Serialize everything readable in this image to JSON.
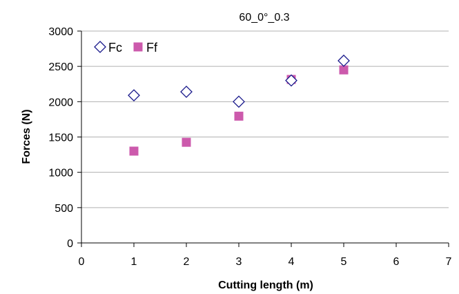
{
  "chart_data": {
    "type": "scatter",
    "title": "60_0°_0.3",
    "xlabel": "Cutting length (m)",
    "ylabel": "Forces (N)",
    "xlim": [
      0,
      7
    ],
    "ylim": [
      0,
      3000
    ],
    "xticks": [
      0,
      1,
      2,
      3,
      4,
      5,
      6,
      7
    ],
    "yticks": [
      0,
      500,
      1000,
      1500,
      2000,
      2500,
      3000
    ],
    "grid": "horizontal",
    "legend": "top-left",
    "series": [
      {
        "name": "Fc",
        "marker": "diamond-open",
        "color": "#1a1a8c",
        "x": [
          1,
          2,
          3,
          4,
          5
        ],
        "y": [
          2090,
          2140,
          2000,
          2300,
          2580
        ]
      },
      {
        "name": "Ff",
        "marker": "square",
        "color": "#cc5aac",
        "x": [
          1,
          2,
          3,
          4,
          5
        ],
        "y": [
          1300,
          1425,
          1795,
          2315,
          2450
        ]
      }
    ]
  }
}
